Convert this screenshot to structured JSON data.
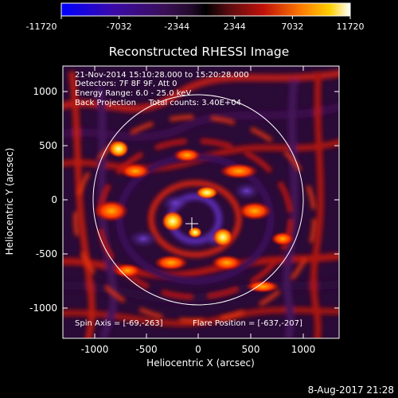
{
  "window": {
    "timestamp": "8-Aug-2017 21:28"
  },
  "colorbar": {
    "tick_labels": [
      "-11720",
      "-7032",
      "-2344",
      "2344",
      "7032",
      "11720"
    ],
    "min": -11720,
    "max": 11720
  },
  "plot": {
    "title": "Reconstructed RHESSI Image",
    "xlabel": "Heliocentric X (arcsec)",
    "ylabel": "Heliocentric Y (arcsec)",
    "x_ticks": [
      "-1000",
      "-500",
      "0",
      "500",
      "1000"
    ],
    "y_ticks": [
      "1000",
      "500",
      "0",
      "-500",
      "-1000"
    ],
    "annotation_lines": [
      "21-Nov-2014 15:10:28.000 to 15:20:28.000",
      "Detectors: 7F 8F 9F, Att 0",
      "Energy Range: 6.0 - 25.0 keV",
      "Back Projection     Total counts: 3.40E+04"
    ],
    "spin_axis": "Spin Axis = [-69,-263]",
    "flare_position": "Flare Position = [-637,-207]"
  },
  "chart_data": {
    "type": "heatmap",
    "title": "Reconstructed RHESSI Image",
    "xlabel": "Heliocentric X (arcsec)",
    "ylabel": "Heliocentric Y (arcsec)",
    "xlim": [
      -1280,
      1300
    ],
    "ylim": [
      -1300,
      1280
    ],
    "color_range": [
      -11720,
      11720
    ],
    "solar_limb_radius": 970,
    "solar_limb_center": [
      0,
      0
    ],
    "marker": [
      -69,
      -263
    ],
    "bright_sources": [
      {
        "x": -770,
        "y": 480,
        "level": "very high"
      },
      {
        "x": -220,
        "y": -210,
        "level": "very high"
      },
      {
        "x": 220,
        "y": -360,
        "level": "very high"
      },
      {
        "x": 10,
        "y": 90,
        "level": "high"
      }
    ]
  }
}
